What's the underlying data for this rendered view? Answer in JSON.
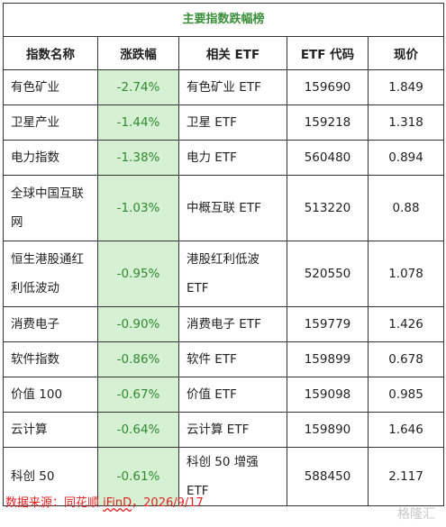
{
  "table": {
    "title": "主要指数跌幅榜",
    "header": [
      "指数名称",
      "涨跌幅",
      "相关 ETF",
      "ETF 代码",
      "现价"
    ],
    "rows": [
      [
        "有色矿业",
        "-2.74%",
        "有色矿业 ETF",
        "159690",
        "1.849"
      ],
      [
        "卫星产业",
        "-1.44%",
        "卫星 ETF",
        "159218",
        "1.318"
      ],
      [
        "电力指数",
        "-1.38%",
        "电力 ETF",
        "560480",
        "0.894"
      ],
      [
        "全球中国互联网",
        "-1.03%",
        "中概互联 ETF",
        "513220",
        "0.88"
      ],
      [
        "恒生港股通红利低波动",
        "-0.95%",
        "港股红利低波ETF",
        "520550",
        "1.078"
      ],
      [
        "消费电子",
        "-0.90%",
        "消费电子 ETF",
        "159779",
        "1.426"
      ],
      [
        "软件指数",
        "-0.86%",
        "软件 ETF",
        "159899",
        "0.678"
      ],
      [
        "价值 100",
        "-0.67%",
        "价值 ETF",
        "159098",
        "0.985"
      ],
      [
        "云计算",
        "-0.64%",
        "云计算 ETF",
        "159890",
        "1.646"
      ],
      [
        "科创 50",
        "-0.61%",
        "科创 50 增强 ETF",
        "588450",
        "2.117"
      ]
    ]
  },
  "source": {
    "prefix": "数据来源：同花顺 ",
    "brand": "iFinD",
    "suffix": "，2026/9/17"
  },
  "watermark": "格隆汇"
}
